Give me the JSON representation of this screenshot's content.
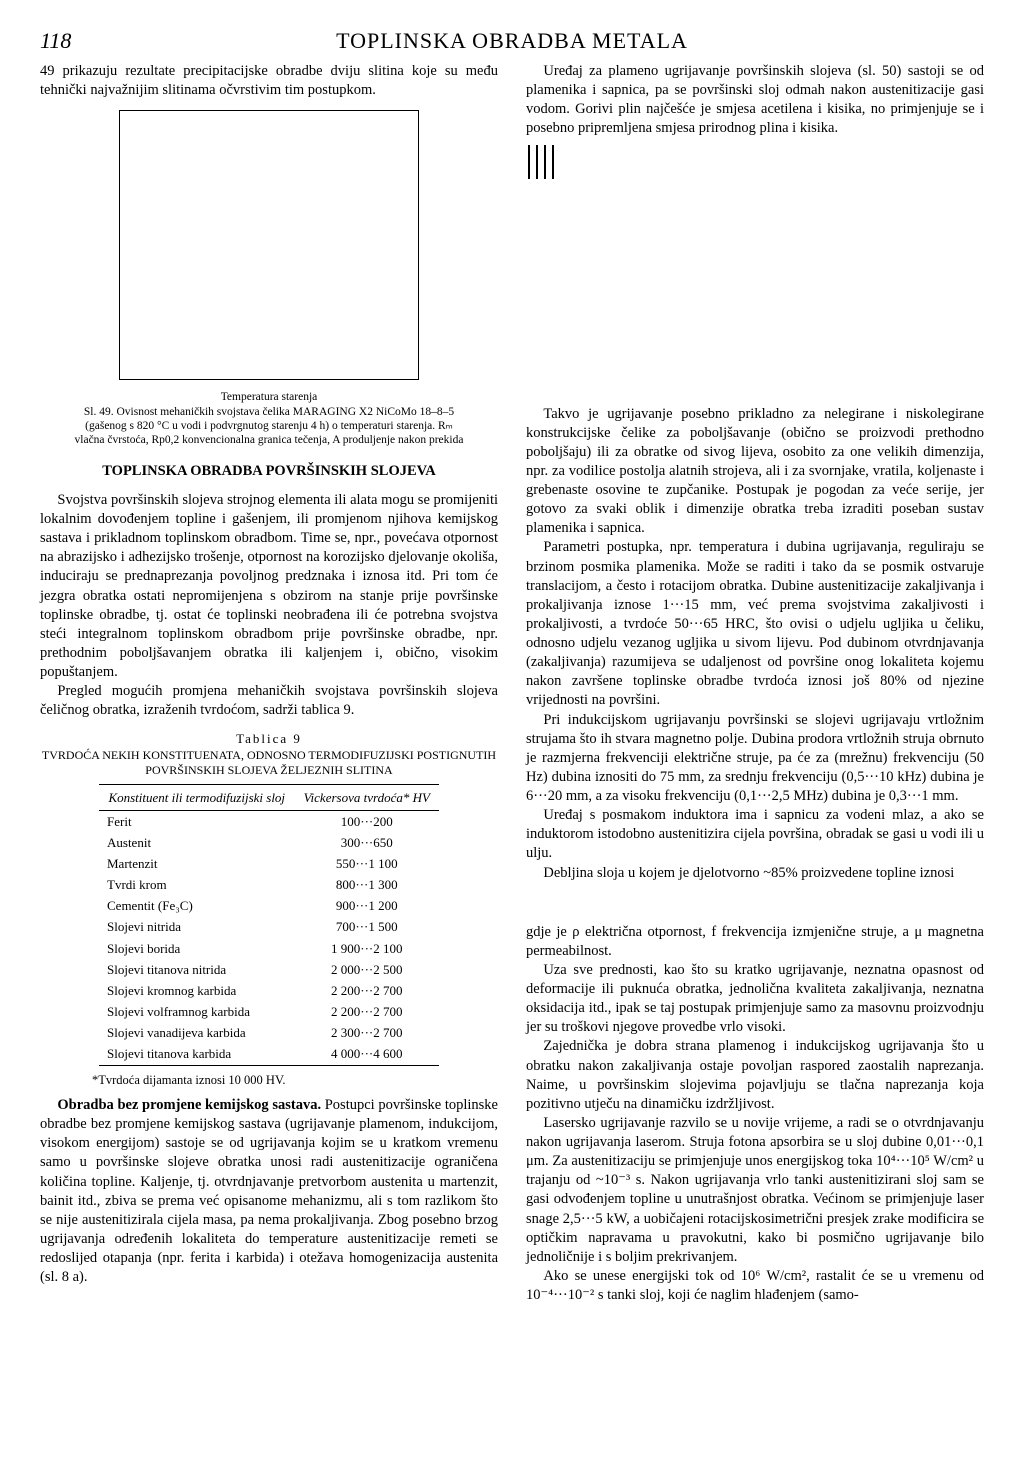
{
  "header": {
    "page_number": "118",
    "title": "TOPLINSKA OBRADBA METALA"
  },
  "left": {
    "intro": "49 prikazuju rezultate precipitacijske obradbe dviju slitina koje su među tehnički najvažnijim slitinama očvrstivim tim postupkom.",
    "fig_caption_line1": "Temperatura starenja",
    "fig_caption_line2": "Sl. 49. Ovisnost mehaničkih svojstava čelika MARAGING X2 NiCoMo 18–8–5 (gašenog s 820 °C u vodi i podvrgnutog starenju 4 h) o temperaturi starenja. Rₘ vlačna čvrstoća, Rp0,2 konvencionalna granica tečenja, A produljenje nakon prekida",
    "section_title": "TOPLINSKA OBRADBA POVRŠINSKIH SLOJEVA",
    "p1": "Svojstva površinskih slojeva strojnog elementa ili alata mogu se promijeniti lokalnim dovođenjem topline i gašenjem, ili promjenom njihova kemijskog sastava i prikladnom toplinskom obradbom. Time se, npr., povećava otpornost na abrazijsko i adhezijsko trošenje, otpornost na korozijsko djelovanje okoliša, induciraju se prednaprezanja povoljnog predznaka i iznosa itd. Pri tom će jezgra obratka ostati nepromijenjena s obzirom na stanje prije površinske toplinske obradbe, tj. ostat će toplinski neobrađena ili će potrebna svojstva steći integralnom toplinskom obradbom prije površinske obradbe, npr. prethodnim poboljšavanjem obratka ili kaljenjem i, obično, visokim popuštanjem.",
    "p2": "Pregled mogućih promjena mehaničkih svojstava površinskih slojeva čeličnog obratka, izraženih tvrdoćom, sadrži tablica 9.",
    "table": {
      "number": "Tablica 9",
      "title": "TVRDOĆA NEKIH KONSTITUENATA, ODNOSNO TERMODIFUZIJSKI POSTIGNUTIH POVRŠINSKIH SLOJEVA ŽELJEZNIH SLITINA",
      "col1_header": "Konstituent ili termodifuzijski sloj",
      "col2_header": "Vickersova tvrdoća* HV",
      "rows": [
        [
          "Ferit",
          "100···200"
        ],
        [
          "Austenit",
          "300···650"
        ],
        [
          "Martenzit",
          "550···1 100"
        ],
        [
          "Tvrdi krom",
          "800···1 300"
        ],
        [
          "Cementit (Fe₃C)",
          "900···1 200"
        ],
        [
          "Slojevi nitrida",
          "700···1 500"
        ],
        [
          "Slojevi borida",
          "1 900···2 100"
        ],
        [
          "Slojevi titanova nitrida",
          "2 000···2 500"
        ],
        [
          "Slojevi kromnog karbida",
          "2 200···2 700"
        ],
        [
          "Slojevi volframnog karbida",
          "2 200···2 700"
        ],
        [
          "Slojevi vanadijeva karbida",
          "2 300···2 700"
        ],
        [
          "Slojevi titanova karbida",
          "4 000···4 600"
        ]
      ],
      "note": "*Tvrdoća dijamanta iznosi 10 000 HV."
    },
    "p3_head": "Obradba bez promjene kemijskog sastava.",
    "p3": " Postupci površinske toplinske obradbe bez promjene kemijskog sastava (ugrijavanje plamenom, indukcijom, visokom energijom) sastoje se od ugrijavanja kojim se u kratkom vremenu samo u površinske slojeve obratka unosi radi austenitizacije ograničena količina topline. Kaljenje, tj. otvrdnjavanje pretvorbom austenita u martenzit, bainit itd., zbiva se prema već opisanome mehanizmu, ali s tom razlikom što se nije austenitizirala cijela masa, pa nema prokaljivanja. Zbog posebno brzog ugrijavanja određenih lokaliteta do temperature austenitizacije remeti se redoslijed otapanja (npr. ferita i karbida) i otežava homogenizacija austenita (sl. 8 a)."
  },
  "right": {
    "p1": "Uređaj za plameno ugrijavanje površinskih slojeva (sl. 50) sastoji se od plamenika i sapnica, pa se površinski sloj odmah nakon austenitizacije gasi vodom. Gorivi plin najčešće je smjesa acetilena i kisika, no primjenjuje se i posebno pripremljena smjesa prirodnog plina i kisika.",
    "p2": "Takvo je ugrijavanje posebno prikladno za nelegirane i niskolegirane konstrukcijske čelike za poboljšavanje (obično se proizvodi prethodno poboljšaju) ili za obratke od sivog lijeva, osobito za one velikih dimenzija, npr. za vodilice postolja alatnih strojeva, ali i za svornjake, vratila, koljenaste i grebenaste osovine te zupčanike. Postupak je pogodan za veće serije, jer gotovo za svaki oblik i dimenzije obratka treba izraditi poseban sustav plamenika i sapnica.",
    "p3": "Parametri postupka, npr. temperatura i dubina ugrijavanja, reguliraju se brzinom posmika plamenika. Može se raditi i tako da se posmik ostvaruje translacijom, a često i rotacijom obratka. Dubine austenitizacije zakaljivanja i prokaljivanja iznose 1···15 mm, već prema svojstvima zakaljivosti i prokaljivosti, a tvrdoće 50···65 HRC, što ovisi o udjelu ugljika u čeliku, odnosno udjelu vezanog ugljika u sivom lijevu. Pod dubinom otvrdnjavanja (zakaljivanja) razumijeva se udaljenost od površine onog lokaliteta kojemu nakon završene toplinske obradbe tvrdoća iznosi još 80% od njezine vrijednosti na površini.",
    "p4": "Pri indukcijskom ugrijavanju površinski se slojevi ugrijavaju vrtložnim strujama što ih stvara magnetno polje. Dubina prodora vrtložnih struja obrnuto je razmjerna frekvenciji električne struje, pa će za (mrežnu) frekvenciju (50 Hz) dubina iznositi do 75 mm, za srednju frekvenciju (0,5···10 kHz) dubina je 6···20 mm, a za visoku frekvenciju (0,1···2,5 MHz) dubina je 0,3···1 mm.",
    "p5": "Uređaj s posmakom induktora ima i sapnicu za vodeni mlaz, a ako se induktorom istodobno austenitizira cijela površina, obradak se gasi u vodi ili u ulju.",
    "p6": "Debljina sloja u kojem je djelotvorno ~85% proizvedene topline iznosi",
    "p7": "gdje je ρ električna otpornost, f frekvencija izmjenične struje, a μ magnetna permeabilnost.",
    "p8": "Uza sve prednosti, kao što su kratko ugrijavanje, neznatna opasnost od deformacije ili puknuća obratka, jednolična kvaliteta zakaljivanja, neznatna oksidacija itd., ipak se taj postupak primjenjuje samo za masovnu proizvodnju jer su troškovi njegove provedbe vrlo visoki.",
    "p9": "Zajednička je dobra strana plamenog i indukcijskog ugrijavanja što u obratku nakon zakaljivanja ostaje povoljan raspored zaostalih naprezanja. Naime, u površinskim slojevima pojavljuju se tlačna naprezanja koja pozitivno utječu na dinamičku izdržljivost.",
    "p10": "Lasersko ugrijavanje razvilo se u novije vrijeme, a radi se o otvrdnjavanju nakon ugrijavanja laserom. Struja fotona apsorbira se u sloj dubine 0,01···0,1 μm. Za austenitizaciju se primjenjuje unos energijskog toka 10⁴···10⁵ W/cm² u trajanju od ~10⁻³ s. Nakon ugrijavanja vrlo tanki austenitizirani sloj sam se gasi odvođenjem topline u unutrašnjost obratka. Većinom se primjenjuje laser snage 2,5···5 kW, a uobičajeni rotacijskosimetrični presjek zrake modificira se optičkim napravama u pravokutni, kako bi posmično ugrijavanje bilo jednoličnije i s boljim prekrivanjem.",
    "p11": "Ako se unese energijski tok od 10⁶ W/cm², rastalit će se u vremenu od 10⁻⁴···10⁻² s tanki sloj, koji će naglim hlađenjem (samo-"
  }
}
